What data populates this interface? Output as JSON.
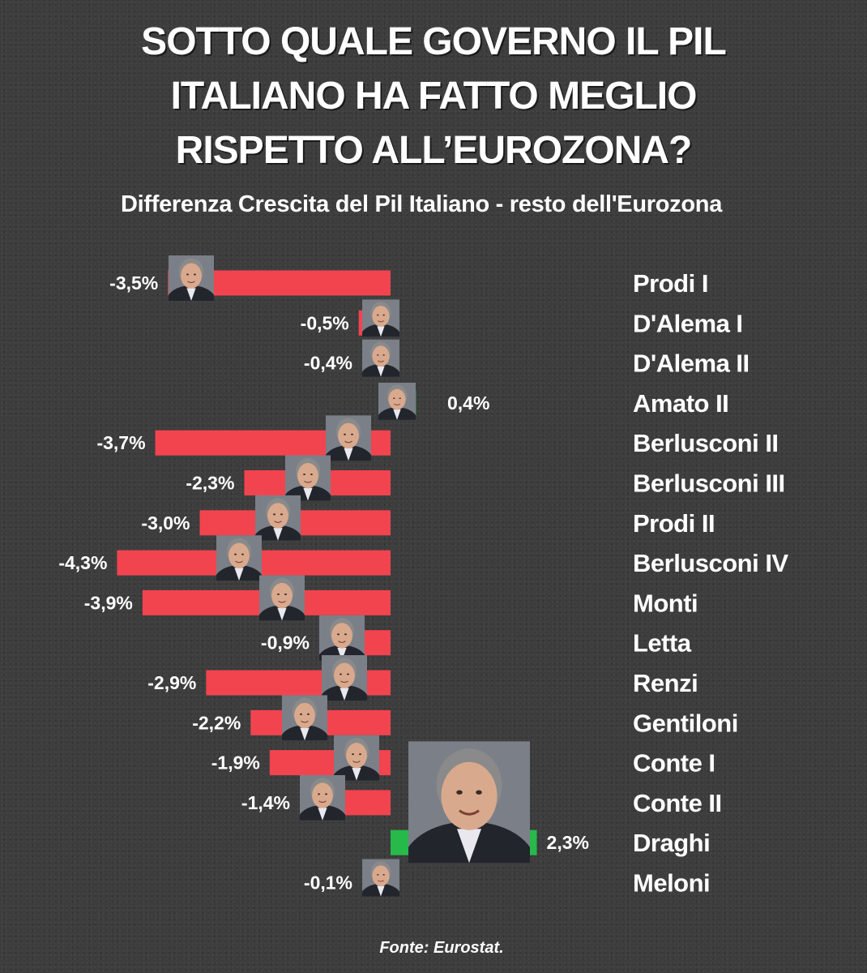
{
  "title_lines": [
    "SOTTO QUALE GOVERNO IL PIL",
    "ITALIANO HA FATTO MEGLIO",
    "RISPETTO ALL’EUROZONA?"
  ],
  "subtitle": "Differenza Crescita del Pil Italiano - resto dell'Eurozona",
  "source": "Fonte: Eurostat.",
  "colors": {
    "negative": "#f2444f",
    "positive": "#27b94a",
    "text": "#ffffff",
    "background": "#3d3d3d"
  },
  "chart_data": {
    "type": "bar",
    "orientation": "horizontal",
    "title": "SOTTO QUALE GOVERNO IL PIL ITALIANO HA FATTO MEGLIO RISPETTO ALL’EUROZONA?",
    "subtitle": "Differenza Crescita del Pil Italiano - resto dell'Eurozona",
    "unit": "%",
    "categories": [
      "Prodi I",
      "D'Alema I",
      "D'Alema II",
      "Amato II",
      "Berlusconi II",
      "Berlusconi III",
      "Prodi II",
      "Berlusconi IV",
      "Monti",
      "Letta",
      "Renzi",
      "Gentiloni",
      "Conte I",
      "Conte II",
      "Draghi",
      "Meloni"
    ],
    "values": [
      -3.5,
      -0.5,
      -0.4,
      0.4,
      -3.7,
      -2.3,
      -3.0,
      -4.3,
      -3.9,
      -0.9,
      -2.9,
      -2.2,
      -1.9,
      -1.4,
      2.3,
      -0.1
    ],
    "value_labels": [
      "-3,5%",
      "-0,5%",
      "-0,4%",
      "0,4%",
      "-3,7%",
      "-2,3%",
      "-3,0%",
      "-4,3%",
      "-3,9%",
      "-0,9%",
      "-2,9%",
      "-2,2%",
      "-1,9%",
      "-1,4%",
      "2,3%",
      "-0,1%"
    ],
    "portraits": [
      "person-photo",
      "person-photo",
      "person-photo",
      "person-photo",
      "person-photo",
      "person-photo",
      "person-photo",
      "person-photo",
      "person-photo",
      "person-photo",
      "person-photo",
      "person-photo",
      "person-photo",
      "person-photo",
      "person-photo-large",
      "person-photo"
    ],
    "axis": "none",
    "grid": false,
    "legend": "none",
    "source": "Fonte: Eurostat."
  }
}
